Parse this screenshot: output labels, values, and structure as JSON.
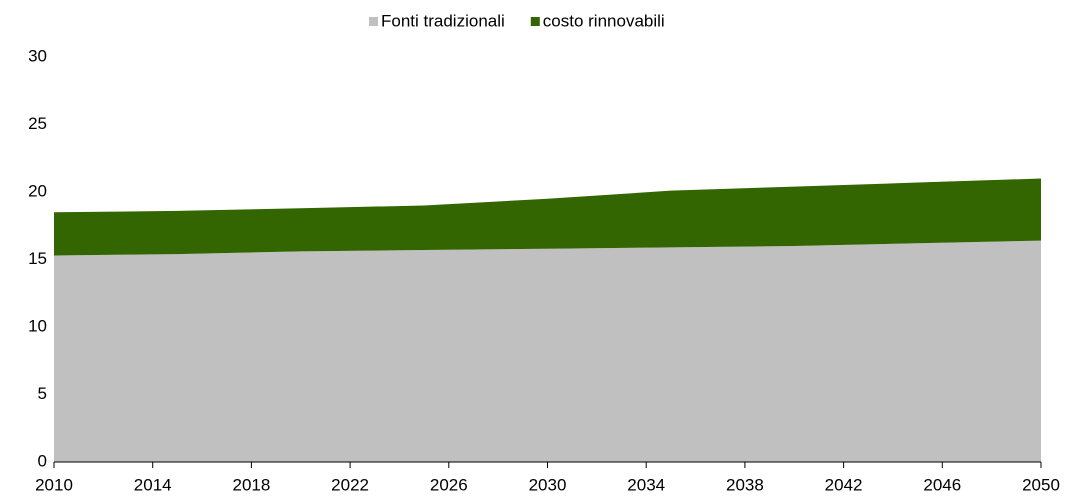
{
  "chart_data": {
    "type": "stacked_area",
    "x": [
      2010,
      2015,
      2020,
      2025,
      2030,
      2035,
      2040,
      2045,
      2050
    ],
    "series": [
      {
        "name": "Fonti tradizionali",
        "color": "#c0c0c0",
        "values": [
          15.3,
          15.4,
          15.6,
          15.7,
          15.8,
          15.9,
          16.0,
          16.2,
          16.4
        ]
      },
      {
        "name": "costo rinnovabili",
        "color": "#336600",
        "values": [
          3.2,
          3.2,
          3.2,
          3.3,
          3.7,
          4.2,
          4.4,
          4.5,
          4.6
        ]
      }
    ],
    "xlim": [
      2010,
      2050
    ],
    "xticks": [
      2010,
      2014,
      2018,
      2022,
      2026,
      2030,
      2034,
      2038,
      2042,
      2046,
      2050
    ],
    "ylim": [
      0,
      30
    ],
    "yticks": [
      0,
      5,
      10,
      15,
      20,
      25,
      30
    ],
    "legend": "top"
  }
}
